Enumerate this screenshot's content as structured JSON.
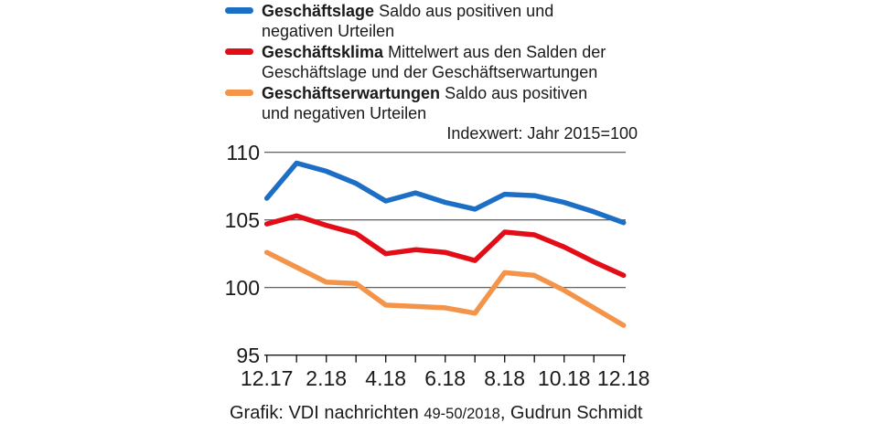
{
  "legend": {
    "items": [
      {
        "name": "Geschäftslage",
        "desc": "Saldo aus positiven und negativen Urteilen",
        "color": "#1c6fc4"
      },
      {
        "name": "Geschäftsklima",
        "desc": "Mittelwert aus den Salden der Geschäftslage und der Geschäftserwartungen",
        "color": "#e30d17"
      },
      {
        "name": "Geschäftserwartungen",
        "desc": "Saldo aus positiven und negativen Urteilen",
        "color": "#f3944a"
      }
    ]
  },
  "annotation": "Indexwert: Jahr 2015=100",
  "footer": {
    "prefix": "Grafik: VDI nachrichten",
    "issue": "49-50/2018",
    "suffix": ", Gudrun Schmidt"
  },
  "chart_data": {
    "type": "line",
    "x": [
      "12.17",
      "1.18",
      "2.18",
      "3.18",
      "4.18",
      "5.18",
      "6.18",
      "7.18",
      "8.18",
      "9.18",
      "10.18",
      "11.18",
      "12.18"
    ],
    "x_tick_labels": [
      "12.17",
      "2.18",
      "4.18",
      "6.18",
      "8.18",
      "10.18",
      "12.18"
    ],
    "y_tick_labels": [
      "110",
      "105",
      "100",
      "95"
    ],
    "y_gridlines": [
      110,
      105,
      100
    ],
    "ylim": [
      95,
      110
    ],
    "baseline_value": 95,
    "grid": true,
    "legend_position": "top-left",
    "title": "",
    "xlabel": "",
    "ylabel": "",
    "series": [
      {
        "name": "Geschäftslage",
        "color": "#1c6fc4",
        "values": [
          106.6,
          109.2,
          108.6,
          107.7,
          106.4,
          107.0,
          106.3,
          105.8,
          106.9,
          106.8,
          106.3,
          105.6,
          104.8
        ]
      },
      {
        "name": "Geschäftsklima",
        "color": "#e30d17",
        "values": [
          104.7,
          105.3,
          104.6,
          104.0,
          102.5,
          102.8,
          102.6,
          102.0,
          104.1,
          103.9,
          103.0,
          101.9,
          100.9
        ]
      },
      {
        "name": "Geschäftserwartungen",
        "color": "#f3944a",
        "values": [
          102.6,
          101.5,
          100.4,
          100.3,
          98.7,
          98.6,
          98.5,
          98.1,
          101.1,
          100.9,
          99.8,
          98.5,
          97.2
        ]
      }
    ]
  }
}
